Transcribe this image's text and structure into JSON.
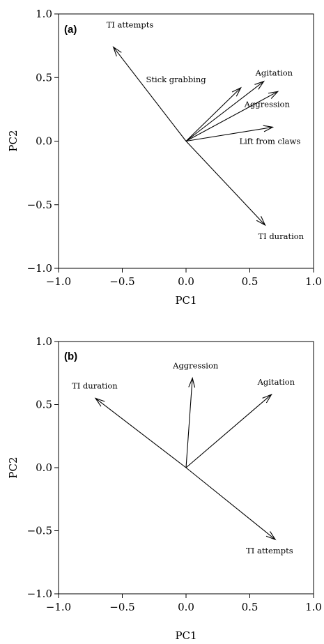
{
  "chart_data": [
    {
      "type": "biplot",
      "panel_label": "(a)",
      "xlabel": "PC1",
      "ylabel": "PC2",
      "xlim": [
        -1.0,
        1.0
      ],
      "ylim": [
        -1.0,
        1.0
      ],
      "xticks": [
        "−1.0",
        "−0.5",
        "0.0",
        "0.5",
        "1.0"
      ],
      "yticks": [
        "−1.0",
        "−0.5",
        "0.0",
        "0.5",
        "1.0"
      ],
      "grid": false,
      "vectors": [
        {
          "name": "TI attempts",
          "x": -0.57,
          "y": 0.74
        },
        {
          "name": "Stick grabbing",
          "x": 0.43,
          "y": 0.42
        },
        {
          "name": "Agitation",
          "x": 0.61,
          "y": 0.47
        },
        {
          "name": "Aggression",
          "x": 0.72,
          "y": 0.39
        },
        {
          "name": "Lift from claws",
          "x": 0.68,
          "y": 0.11
        },
        {
          "name": "TI duration",
          "x": 0.62,
          "y": -0.66
        }
      ]
    },
    {
      "type": "biplot",
      "panel_label": "(b)",
      "xlabel": "PC1",
      "ylabel": "PC2",
      "xlim": [
        -1.0,
        1.0
      ],
      "ylim": [
        -1.0,
        1.0
      ],
      "xticks": [
        "−1.0",
        "−0.5",
        "0.0",
        "0.5",
        "1.0"
      ],
      "yticks": [
        "−1.0",
        "−0.5",
        "0.0",
        "0.5",
        "1.0"
      ],
      "grid": false,
      "vectors": [
        {
          "name": "TI duration",
          "x": -0.71,
          "y": 0.55
        },
        {
          "name": "Aggression",
          "x": 0.05,
          "y": 0.71
        },
        {
          "name": "Agitation",
          "x": 0.67,
          "y": 0.58
        },
        {
          "name": "TI attempts",
          "x": 0.7,
          "y": -0.57
        }
      ]
    }
  ]
}
